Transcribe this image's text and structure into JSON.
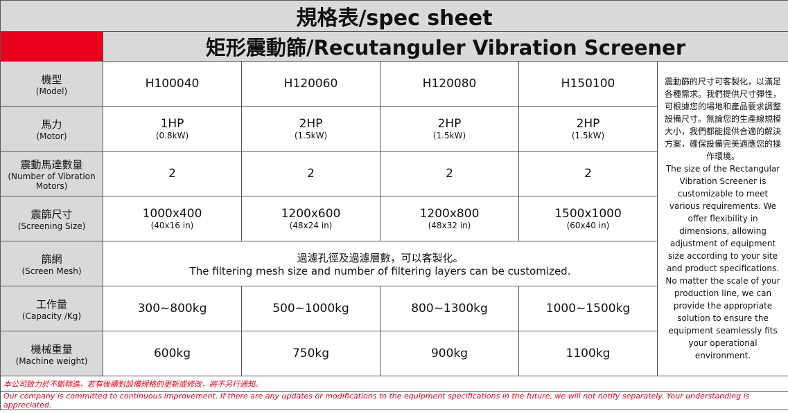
{
  "title": "規格表/spec sheet",
  "subtitle": "矩形震動篩/Recutanguler Vibration Screener",
  "rows": [
    {
      "label": "機型",
      "label_en": "(Model)",
      "cells": [
        {
          "main": "H100040"
        },
        {
          "main": "H120060"
        },
        {
          "main": "H120080"
        },
        {
          "main": "H150100"
        }
      ]
    },
    {
      "label": "馬力",
      "label_en": "(Motor)",
      "cells": [
        {
          "main": "1HP",
          "sub": "(0.8kW)"
        },
        {
          "main": "2HP",
          "sub": "(1.5kW)"
        },
        {
          "main": "2HP",
          "sub": "(1.5kW)"
        },
        {
          "main": "2HP",
          "sub": "(1.5kW)"
        }
      ]
    },
    {
      "label": "震動馬達數量",
      "label_en": "(Number of Vibration Motors)",
      "cells": [
        {
          "main": "2"
        },
        {
          "main": "2"
        },
        {
          "main": "2"
        },
        {
          "main": "2"
        }
      ]
    },
    {
      "label": "震篩尺寸",
      "label_en": "(Screening Size)",
      "cells": [
        {
          "main": "1000x400",
          "sub": "(40x16 in)"
        },
        {
          "main": "1200x600",
          "sub": "(48x24 in)"
        },
        {
          "main": "1200x800",
          "sub": "(48x32 in)"
        },
        {
          "main": "1500x1000",
          "sub": "(60x40 in)"
        }
      ]
    },
    {
      "label": "篩網",
      "label_en": "(Screen Mesh)",
      "cells": [
        {
          "main": "過濾孔徑及過濾層數，可以客製化。",
          "sub": "The filtering mesh size and number of filtering layers can be customized."
        }
      ]
    },
    {
      "label": "工作量",
      "label_en": "(Capacity /Kg)",
      "cells": [
        {
          "main": "300~800kg"
        },
        {
          "main": "500~1000kg"
        },
        {
          "main": "800~1300kg"
        },
        {
          "main": "1000~1500kg"
        }
      ]
    },
    {
      "label": "機械重量",
      "label_en": "(Machine weight)",
      "cells": [
        {
          "main": "600kg"
        },
        {
          "main": "750kg"
        },
        {
          "main": "900kg"
        },
        {
          "main": "1100kg"
        }
      ]
    }
  ],
  "note_zh": "震動篩的尺寸可客製化，以滿足各種需求。我們提供尺寸彈性，可根據您的場地和產品要求調整設備尺寸。無論您的生產線規模大小，我們都能提供合適的解決方案，確保設備完美適應您的操作環境。",
  "note_en": "The size of the Rectangular Vibration Screener is customizable to meet various requirements. We offer flexibility in dimensions, allowing adjustment of equipment size according to your site and product specifications. No matter the scale of your production line, we can provide the appropriate solution to ensure the equipment seamlessly fits your operational environment.",
  "footer_zh": "本公司致力於不斷精進，若有後續對設備規格的更新或修改，將不另行通知。",
  "footer_en": "Our company is committed to continuous improvement. If there are any updates or modifications to the equipment specifications in the future, we will not notify separately. Your understanding is appreciated."
}
